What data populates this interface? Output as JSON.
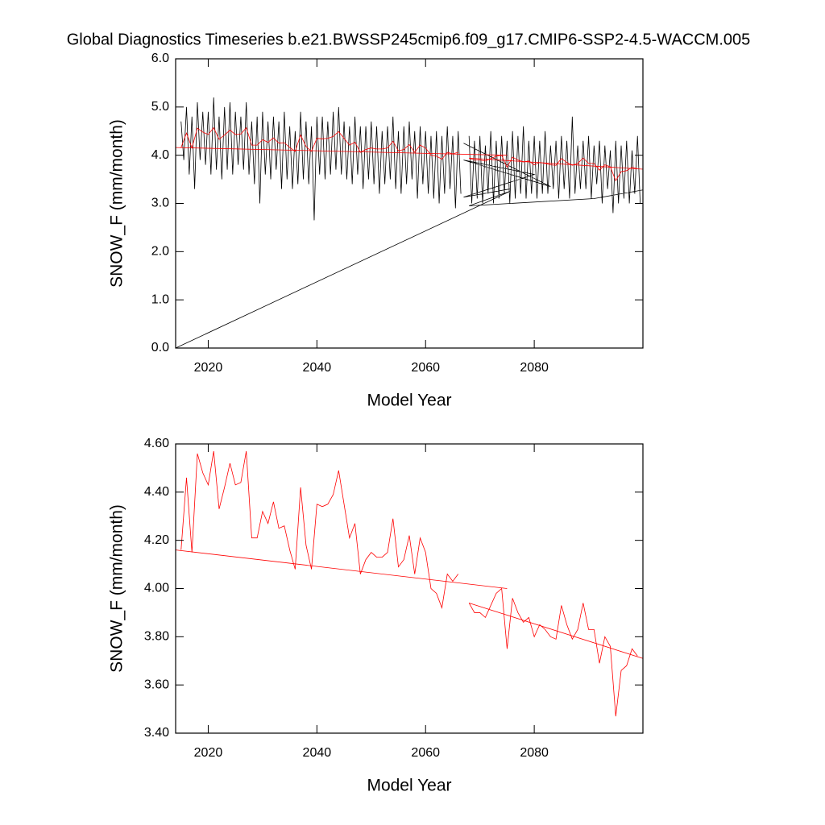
{
  "chart_data": [
    {
      "type": "line",
      "title": "Global Diagnostics Timeseries b.e21.BWSSP245cmip6.f09_g17.CMIP6-SSP2-4.5-WACCM.005",
      "x_label": "Model Year",
      "y_label": "SNOW_F (mm/month)",
      "xlim": [
        2014,
        2100
      ],
      "xticks": [
        2020,
        2040,
        2060,
        2080
      ],
      "ylim": [
        0,
        6
      ],
      "yticks": [
        {
          "value": 0,
          "label": "0.0"
        },
        {
          "value": 1,
          "label": "1.0"
        },
        {
          "value": 2,
          "label": "2.0"
        },
        {
          "value": 3,
          "label": "3.0"
        },
        {
          "value": 4,
          "label": "4.0"
        },
        {
          "value": 5,
          "label": "5.0"
        },
        {
          "value": 6,
          "label": "6.0"
        }
      ],
      "series": [
        {
          "color": "#000000",
          "x": [
            2015,
            2015.5,
            2016,
            2016.5,
            2017,
            2017.5,
            2018,
            2018.5,
            2019,
            2019.5,
            2020,
            2020.5,
            2021,
            2021.5,
            2022,
            2022.5,
            2023,
            2023.5,
            2024,
            2024.5,
            2025,
            2025.5,
            2026,
            2026.5,
            2027,
            2027.5,
            2028,
            2028.5,
            2029,
            2029.5,
            2030,
            2030.5,
            2031,
            2031.5,
            2032,
            2032.5,
            2033,
            2033.5,
            2034,
            2034.5,
            2035,
            2035.5,
            2036,
            2036.5,
            2037,
            2037.5,
            2038,
            2038.5,
            2039,
            2039.5,
            2040,
            2040.5,
            2041,
            2041.5,
            2042,
            2042.5,
            2043,
            2043.5,
            2044,
            2044.5,
            2045,
            2045.5,
            2046,
            2046.5,
            2047,
            2047.5,
            2048,
            2048.5,
            2049,
            2049.5,
            2050,
            2050.5,
            2051,
            2051.5,
            2052,
            2052.5,
            2053,
            2053.5,
            2054,
            2054.5,
            2055,
            2055.5,
            2056,
            2056.5,
            2057,
            2057.5,
            2058,
            2058.5,
            2059,
            2059.5,
            2060,
            2060.5,
            2061,
            2061.5,
            2062,
            2062.5,
            2063,
            2063.5,
            2064,
            2064.5,
            2065,
            2065.5,
            2066,
            2066.5,
            null,
            2067,
            2083,
            2067,
            2080,
            2067,
            2075.5,
            null,
            2014,
            2075.5,
            2068,
            2091,
            2100,
            null,
            2068,
            2068.5,
            2069,
            2069.5,
            2070,
            2070.5,
            2071,
            2071.5,
            2072,
            2072.5,
            2073,
            2073.5,
            2074,
            2074.5,
            2075,
            2075.5,
            2076,
            2076.5,
            2077,
            2077.5,
            2078,
            2078.5,
            2079,
            2079.5,
            2080,
            2080.5,
            2081,
            2081.5,
            2082,
            2082.5,
            2083,
            2083.5,
            2084,
            2084.5,
            2085,
            2085.5,
            2086,
            2086.5,
            2087,
            2087.5,
            2088,
            2088.5,
            2089,
            2089.5,
            2090,
            2090.5,
            2091,
            2091.5,
            2092,
            2092.5,
            2093,
            2093.5,
            2094,
            2094.5,
            2095,
            2095.5,
            2096,
            2096.5,
            2097,
            2097.5,
            2098,
            2098.5,
            2099,
            2099.5
          ],
          "values": [
            4.7,
            3.9,
            5.0,
            3.6,
            4.8,
            3.3,
            5.1,
            3.9,
            4.9,
            3.8,
            4.9,
            3.6,
            5.2,
            3.7,
            4.8,
            3.5,
            5.0,
            3.7,
            5.1,
            3.6,
            4.9,
            3.8,
            4.8,
            3.7,
            5.1,
            3.6,
            4.7,
            3.4,
            4.8,
            3.0,
            4.9,
            3.6,
            4.7,
            3.5,
            4.8,
            3.7,
            4.7,
            3.3,
            4.9,
            3.5,
            4.6,
            3.3,
            4.5,
            3.4,
            4.9,
            3.5,
            4.7,
            3.4,
            4.6,
            2.65,
            4.8,
            3.6,
            4.8,
            3.5,
            4.7,
            3.6,
            4.9,
            3.7,
            5.0,
            3.6,
            4.7,
            3.5,
            4.6,
            3.4,
            4.8,
            3.6,
            4.6,
            3.3,
            4.6,
            3.5,
            4.7,
            3.4,
            4.6,
            3.2,
            4.5,
            3.4,
            4.6,
            3.5,
            4.8,
            3.3,
            4.5,
            3.2,
            4.6,
            3.4,
            4.7,
            3.5,
            4.5,
            3.1,
            4.6,
            3.4,
            4.5,
            3.2,
            4.4,
            3.1,
            4.5,
            3.0,
            4.4,
            3.2,
            4.6,
            3.3,
            4.4,
            2.9,
            4.5,
            3.2,
            null,
            4.25,
            3.35,
            3.9,
            3.6,
            3.13,
            3.3,
            null,
            0.0,
            3.25,
            2.95,
            3.1,
            3.28,
            null,
            4.4,
            3.0,
            4.3,
            3.1,
            4.4,
            3.0,
            4.2,
            3.2,
            4.5,
            3.0,
            4.3,
            3.1,
            4.4,
            3.2,
            4.3,
            3.0,
            4.5,
            3.1,
            4.4,
            3.2,
            4.6,
            3.1,
            4.3,
            3.2,
            4.4,
            3.1,
            4.3,
            3.2,
            4.5,
            3.2,
            4.2,
            3.3,
            4.3,
            3.1,
            4.4,
            3.3,
            4.3,
            3.1,
            4.8,
            3.2,
            4.2,
            3.3,
            4.3,
            3.3,
            4.4,
            3.1,
            4.2,
            3.4,
            4.3,
            3.0,
            4.2,
            3.3,
            4.1,
            2.8,
            4.3,
            3.0,
            4.2,
            3.1,
            4.3,
            3.0,
            4.1,
            3.2,
            4.4,
            3.0
          ]
        },
        {
          "color": "#ff0000",
          "x": [
            2015,
            2016,
            2017,
            2018,
            2019,
            2020,
            2021,
            2022,
            2023,
            2024,
            2025,
            2026,
            2027,
            2028,
            2029,
            2030,
            2031,
            2032,
            2033,
            2034,
            2035,
            2036,
            2037,
            2038,
            2039,
            2040,
            2041,
            2042,
            2043,
            2044,
            2045,
            2046,
            2047,
            2048,
            2049,
            2050,
            2051,
            2052,
            2053,
            2054,
            2055,
            2056,
            2057,
            2058,
            2059,
            2060,
            2061,
            2062,
            2063,
            2064,
            2065,
            2066,
            null,
            2068,
            2069,
            2070,
            2071,
            2072,
            2073,
            2074,
            2075,
            2076,
            2077,
            2078,
            2079,
            2080,
            2081,
            2082,
            2083,
            2084,
            2085,
            2086,
            2087,
            2088,
            2089,
            2090,
            2091,
            2092,
            2093,
            2094,
            2095,
            2096,
            2097,
            2098,
            2099
          ],
          "values": [
            4.16,
            4.46,
            4.15,
            4.56,
            4.48,
            4.43,
            4.57,
            4.33,
            4.42,
            4.52,
            4.43,
            4.44,
            4.57,
            4.21,
            4.21,
            4.32,
            4.27,
            4.36,
            4.25,
            4.26,
            4.16,
            4.08,
            4.42,
            4.18,
            4.08,
            4.35,
            4.34,
            4.35,
            4.39,
            4.49,
            4.35,
            4.21,
            4.27,
            4.06,
            4.12,
            4.15,
            4.13,
            4.13,
            4.15,
            4.29,
            4.09,
            4.12,
            4.22,
            4.06,
            4.21,
            4.15,
            4.0,
            3.98,
            3.92,
            4.06,
            4.03,
            4.06,
            null,
            3.94,
            3.9,
            3.9,
            3.88,
            3.93,
            3.98,
            4.0,
            3.75,
            3.96,
            3.9,
            3.86,
            3.88,
            3.8,
            3.85,
            3.83,
            3.8,
            3.79,
            3.93,
            3.85,
            3.79,
            3.83,
            3.94,
            3.83,
            3.83,
            3.69,
            3.8,
            3.76,
            3.47,
            3.66,
            3.68,
            3.75,
            3.72
          ]
        },
        {
          "color": "#ff0000",
          "x": [
            2014,
            2075,
            null,
            2068,
            2100
          ],
          "values": [
            4.16,
            4.0,
            null,
            3.94,
            3.71
          ]
        }
      ]
    },
    {
      "type": "line",
      "x_label": "Model Year",
      "y_label": "SNOW_F (mm/month)",
      "xlim": [
        2014,
        2100
      ],
      "xticks": [
        2020,
        2040,
        2060,
        2080
      ],
      "ylim": [
        3.4,
        4.6
      ],
      "yticks": [
        {
          "value": 3.4,
          "label": "3.40"
        },
        {
          "value": 3.6,
          "label": "3.60"
        },
        {
          "value": 3.8,
          "label": "3.80"
        },
        {
          "value": 4.0,
          "label": "4.00"
        },
        {
          "value": 4.2,
          "label": "4.20"
        },
        {
          "value": 4.4,
          "label": "4.40"
        },
        {
          "value": 4.6,
          "label": "4.60"
        }
      ],
      "series": [
        {
          "color": "#ff0000",
          "x": [
            2015,
            2016,
            2017,
            2018,
            2019,
            2020,
            2021,
            2022,
            2023,
            2024,
            2025,
            2026,
            2027,
            2028,
            2029,
            2030,
            2031,
            2032,
            2033,
            2034,
            2035,
            2036,
            2037,
            2038,
            2039,
            2040,
            2041,
            2042,
            2043,
            2044,
            2045,
            2046,
            2047,
            2048,
            2049,
            2050,
            2051,
            2052,
            2053,
            2054,
            2055,
            2056,
            2057,
            2058,
            2059,
            2060,
            2061,
            2062,
            2063,
            2064,
            2065,
            2066,
            null,
            2068,
            2069,
            2070,
            2071,
            2072,
            2073,
            2074,
            2075,
            2076,
            2077,
            2078,
            2079,
            2080,
            2081,
            2082,
            2083,
            2084,
            2085,
            2086,
            2087,
            2088,
            2089,
            2090,
            2091,
            2092,
            2093,
            2094,
            2095,
            2096,
            2097,
            2098,
            2099
          ],
          "values": [
            4.16,
            4.46,
            4.15,
            4.56,
            4.48,
            4.43,
            4.57,
            4.33,
            4.42,
            4.52,
            4.43,
            4.44,
            4.57,
            4.21,
            4.21,
            4.32,
            4.27,
            4.36,
            4.25,
            4.26,
            4.16,
            4.08,
            4.42,
            4.18,
            4.08,
            4.35,
            4.34,
            4.35,
            4.39,
            4.49,
            4.35,
            4.21,
            4.27,
            4.06,
            4.12,
            4.15,
            4.13,
            4.13,
            4.15,
            4.29,
            4.09,
            4.12,
            4.22,
            4.06,
            4.21,
            4.15,
            4.0,
            3.98,
            3.92,
            4.06,
            4.03,
            4.06,
            null,
            3.94,
            3.9,
            3.9,
            3.88,
            3.93,
            3.98,
            4.0,
            3.75,
            3.96,
            3.9,
            3.86,
            3.88,
            3.8,
            3.85,
            3.83,
            3.8,
            3.79,
            3.93,
            3.85,
            3.79,
            3.83,
            3.94,
            3.83,
            3.83,
            3.69,
            3.8,
            3.76,
            3.47,
            3.66,
            3.68,
            3.75,
            3.72
          ]
        },
        {
          "color": "#ff0000",
          "x": [
            2014,
            2075,
            null,
            2068,
            2100
          ],
          "values": [
            4.16,
            4.0,
            null,
            3.94,
            3.71
          ]
        }
      ]
    }
  ]
}
